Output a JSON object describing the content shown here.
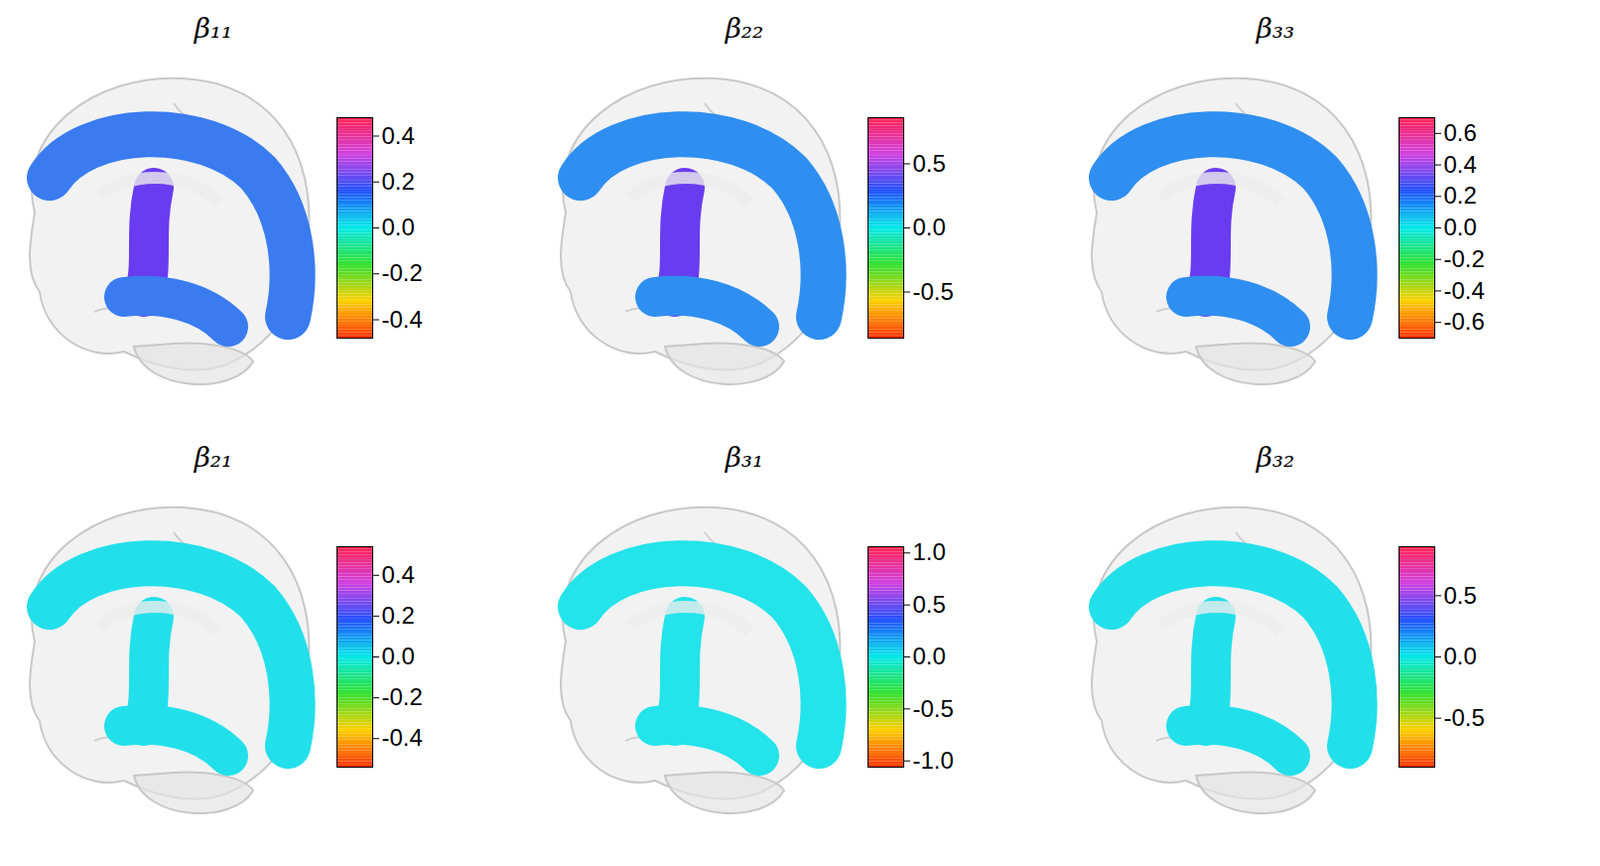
{
  "chart_data": [
    {
      "type": "brain_map",
      "title": "β₁₁",
      "color": "#3a7cf0",
      "colorbar_range": [
        -0.48,
        0.48
      ],
      "colorbar_ticks": [
        0.4,
        0.2,
        {
          "value": 0,
          "label": "0.0"
        },
        -0.2,
        -0.4
      ]
    },
    {
      "type": "brain_map",
      "title": "β₂₂",
      "color": "#2f8ff0",
      "colorbar_range": [
        -0.86,
        0.86
      ],
      "colorbar_ticks": [
        0.5,
        {
          "value": 0,
          "label": "0.0"
        },
        -0.5
      ]
    },
    {
      "type": "brain_map",
      "title": "β₃₃",
      "color": "#2f8ff0",
      "colorbar_range": [
        -0.7,
        0.7
      ],
      "colorbar_ticks": [
        0.6,
        0.4,
        0.2,
        {
          "value": 0,
          "label": "0.0"
        },
        -0.2,
        -0.4,
        -0.6
      ]
    },
    {
      "type": "brain_map",
      "title": "β₂₁",
      "color": "#22e0ea",
      "colorbar_range": [
        -0.54,
        0.54
      ],
      "colorbar_ticks": [
        0.4,
        0.2,
        {
          "value": 0,
          "label": "0.0"
        },
        -0.2,
        -0.4
      ]
    },
    {
      "type": "brain_map",
      "title": "β₃₁",
      "color": "#22e4ea",
      "colorbar_range": [
        -1.06,
        1.06
      ],
      "colorbar_ticks": [
        {
          "value": 1,
          "label": "1.0"
        },
        0.5,
        {
          "value": 0,
          "label": "0.0"
        },
        -0.5,
        {
          "value": -1,
          "label": "-1.0"
        }
      ]
    },
    {
      "type": "brain_map",
      "title": "β₃₂",
      "color": "#22e0ea",
      "colorbar_range": [
        -0.9,
        0.9
      ],
      "colorbar_ticks": [
        0.5,
        {
          "value": 0,
          "label": "0.0"
        },
        -0.5
      ]
    }
  ]
}
